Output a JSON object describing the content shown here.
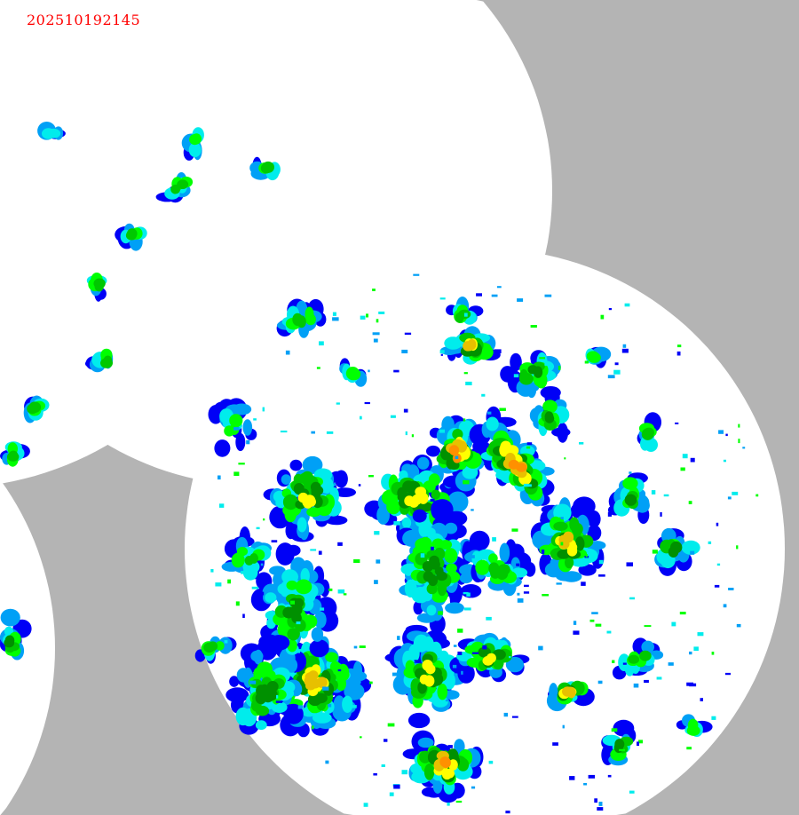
{
  "map": {
    "timestamp": "202510192145",
    "background_color": "#b4b4b4",
    "coverage_color": "#ffffff",
    "timestamp_color": "#ff0000",
    "reflectivity_palette": [
      "#0000f6",
      "#00a0f6",
      "#00ecec",
      "#00ff00",
      "#00c800",
      "#009000",
      "#ffff00",
      "#e7c000",
      "#ff9000",
      "#ff0000"
    ]
  }
}
